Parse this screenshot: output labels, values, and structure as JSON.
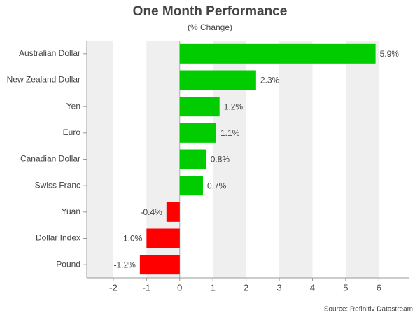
{
  "chart_data": {
    "type": "bar",
    "orientation": "horizontal",
    "title": "One Month Performance",
    "subtitle": "(% Change)",
    "categories": [
      "Australian Dollar",
      "New Zealand Dollar",
      "Yen",
      "Euro",
      "Canadian Dollar",
      "Swiss Franc",
      "Yuan",
      "Dollar Index",
      "Pound"
    ],
    "values": [
      5.9,
      2.3,
      1.2,
      1.1,
      0.8,
      0.7,
      -0.4,
      -1.0,
      -1.2
    ],
    "value_labels": [
      "5.9%",
      "2.3%",
      "1.2%",
      "1.1%",
      "0.8%",
      "0.7%",
      "-0.4%",
      "-1.0%",
      "-1.2%"
    ],
    "positive_color": "#00cc00",
    "negative_color": "#ff0000",
    "xlim": [
      -2.8,
      6.9
    ],
    "xticks": [
      -2,
      -1,
      0,
      1,
      2,
      3,
      4,
      5,
      6
    ],
    "banded_grid": true,
    "source": "Source: Refinitiv Datastream"
  }
}
